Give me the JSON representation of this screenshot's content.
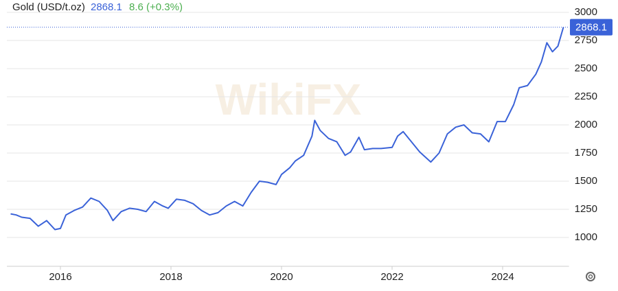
{
  "chart_data": {
    "type": "line",
    "title": "Gold (USD/t.oz)",
    "last_price": 2868.1,
    "change": "8.6 (+0.3%)",
    "watermark": "WikiFX",
    "x": [
      2015.1,
      2015.2,
      2015.3,
      2015.45,
      2015.6,
      2015.75,
      2015.9,
      2016.0,
      2016.1,
      2016.25,
      2016.4,
      2016.55,
      2016.7,
      2016.85,
      2016.95,
      2017.1,
      2017.25,
      2017.4,
      2017.55,
      2017.7,
      2017.85,
      2017.95,
      2018.1,
      2018.25,
      2018.4,
      2018.55,
      2018.7,
      2018.85,
      2019.0,
      2019.15,
      2019.3,
      2019.45,
      2019.6,
      2019.75,
      2019.9,
      2020.0,
      2020.15,
      2020.25,
      2020.4,
      2020.55,
      2020.6,
      2020.7,
      2020.85,
      2021.0,
      2021.15,
      2021.25,
      2021.4,
      2021.5,
      2021.65,
      2021.8,
      2022.0,
      2022.1,
      2022.2,
      2022.35,
      2022.5,
      2022.7,
      2022.85,
      2023.0,
      2023.15,
      2023.3,
      2023.45,
      2023.6,
      2023.75,
      2023.9,
      2024.05,
      2024.2,
      2024.3,
      2024.45,
      2024.6,
      2024.7,
      2024.8,
      2024.9,
      2025.0,
      2025.1
    ],
    "series": [
      {
        "name": "Gold",
        "color": "#3a62d8",
        "values": [
          1210,
          1200,
          1180,
          1170,
          1100,
          1150,
          1070,
          1080,
          1200,
          1240,
          1270,
          1350,
          1320,
          1240,
          1150,
          1230,
          1260,
          1250,
          1230,
          1320,
          1280,
          1260,
          1340,
          1330,
          1300,
          1240,
          1200,
          1220,
          1280,
          1320,
          1280,
          1400,
          1500,
          1490,
          1470,
          1560,
          1620,
          1680,
          1730,
          1900,
          2040,
          1950,
          1880,
          1850,
          1730,
          1760,
          1890,
          1780,
          1790,
          1790,
          1800,
          1900,
          1940,
          1850,
          1760,
          1670,
          1750,
          1920,
          1980,
          2000,
          1930,
          1920,
          1850,
          2030,
          2030,
          2180,
          2330,
          2350,
          2450,
          2560,
          2730,
          2650,
          2700,
          2868.1
        ]
      }
    ],
    "xlim": [
      2015,
      2025.2
    ],
    "xticks": [
      2016,
      2018,
      2020,
      2022,
      2024
    ],
    "ylim": [
      750,
      3000
    ],
    "yticks": [
      1000,
      1250,
      1500,
      1750,
      2000,
      2250,
      2500,
      2750,
      3000
    ],
    "grid": true
  }
}
